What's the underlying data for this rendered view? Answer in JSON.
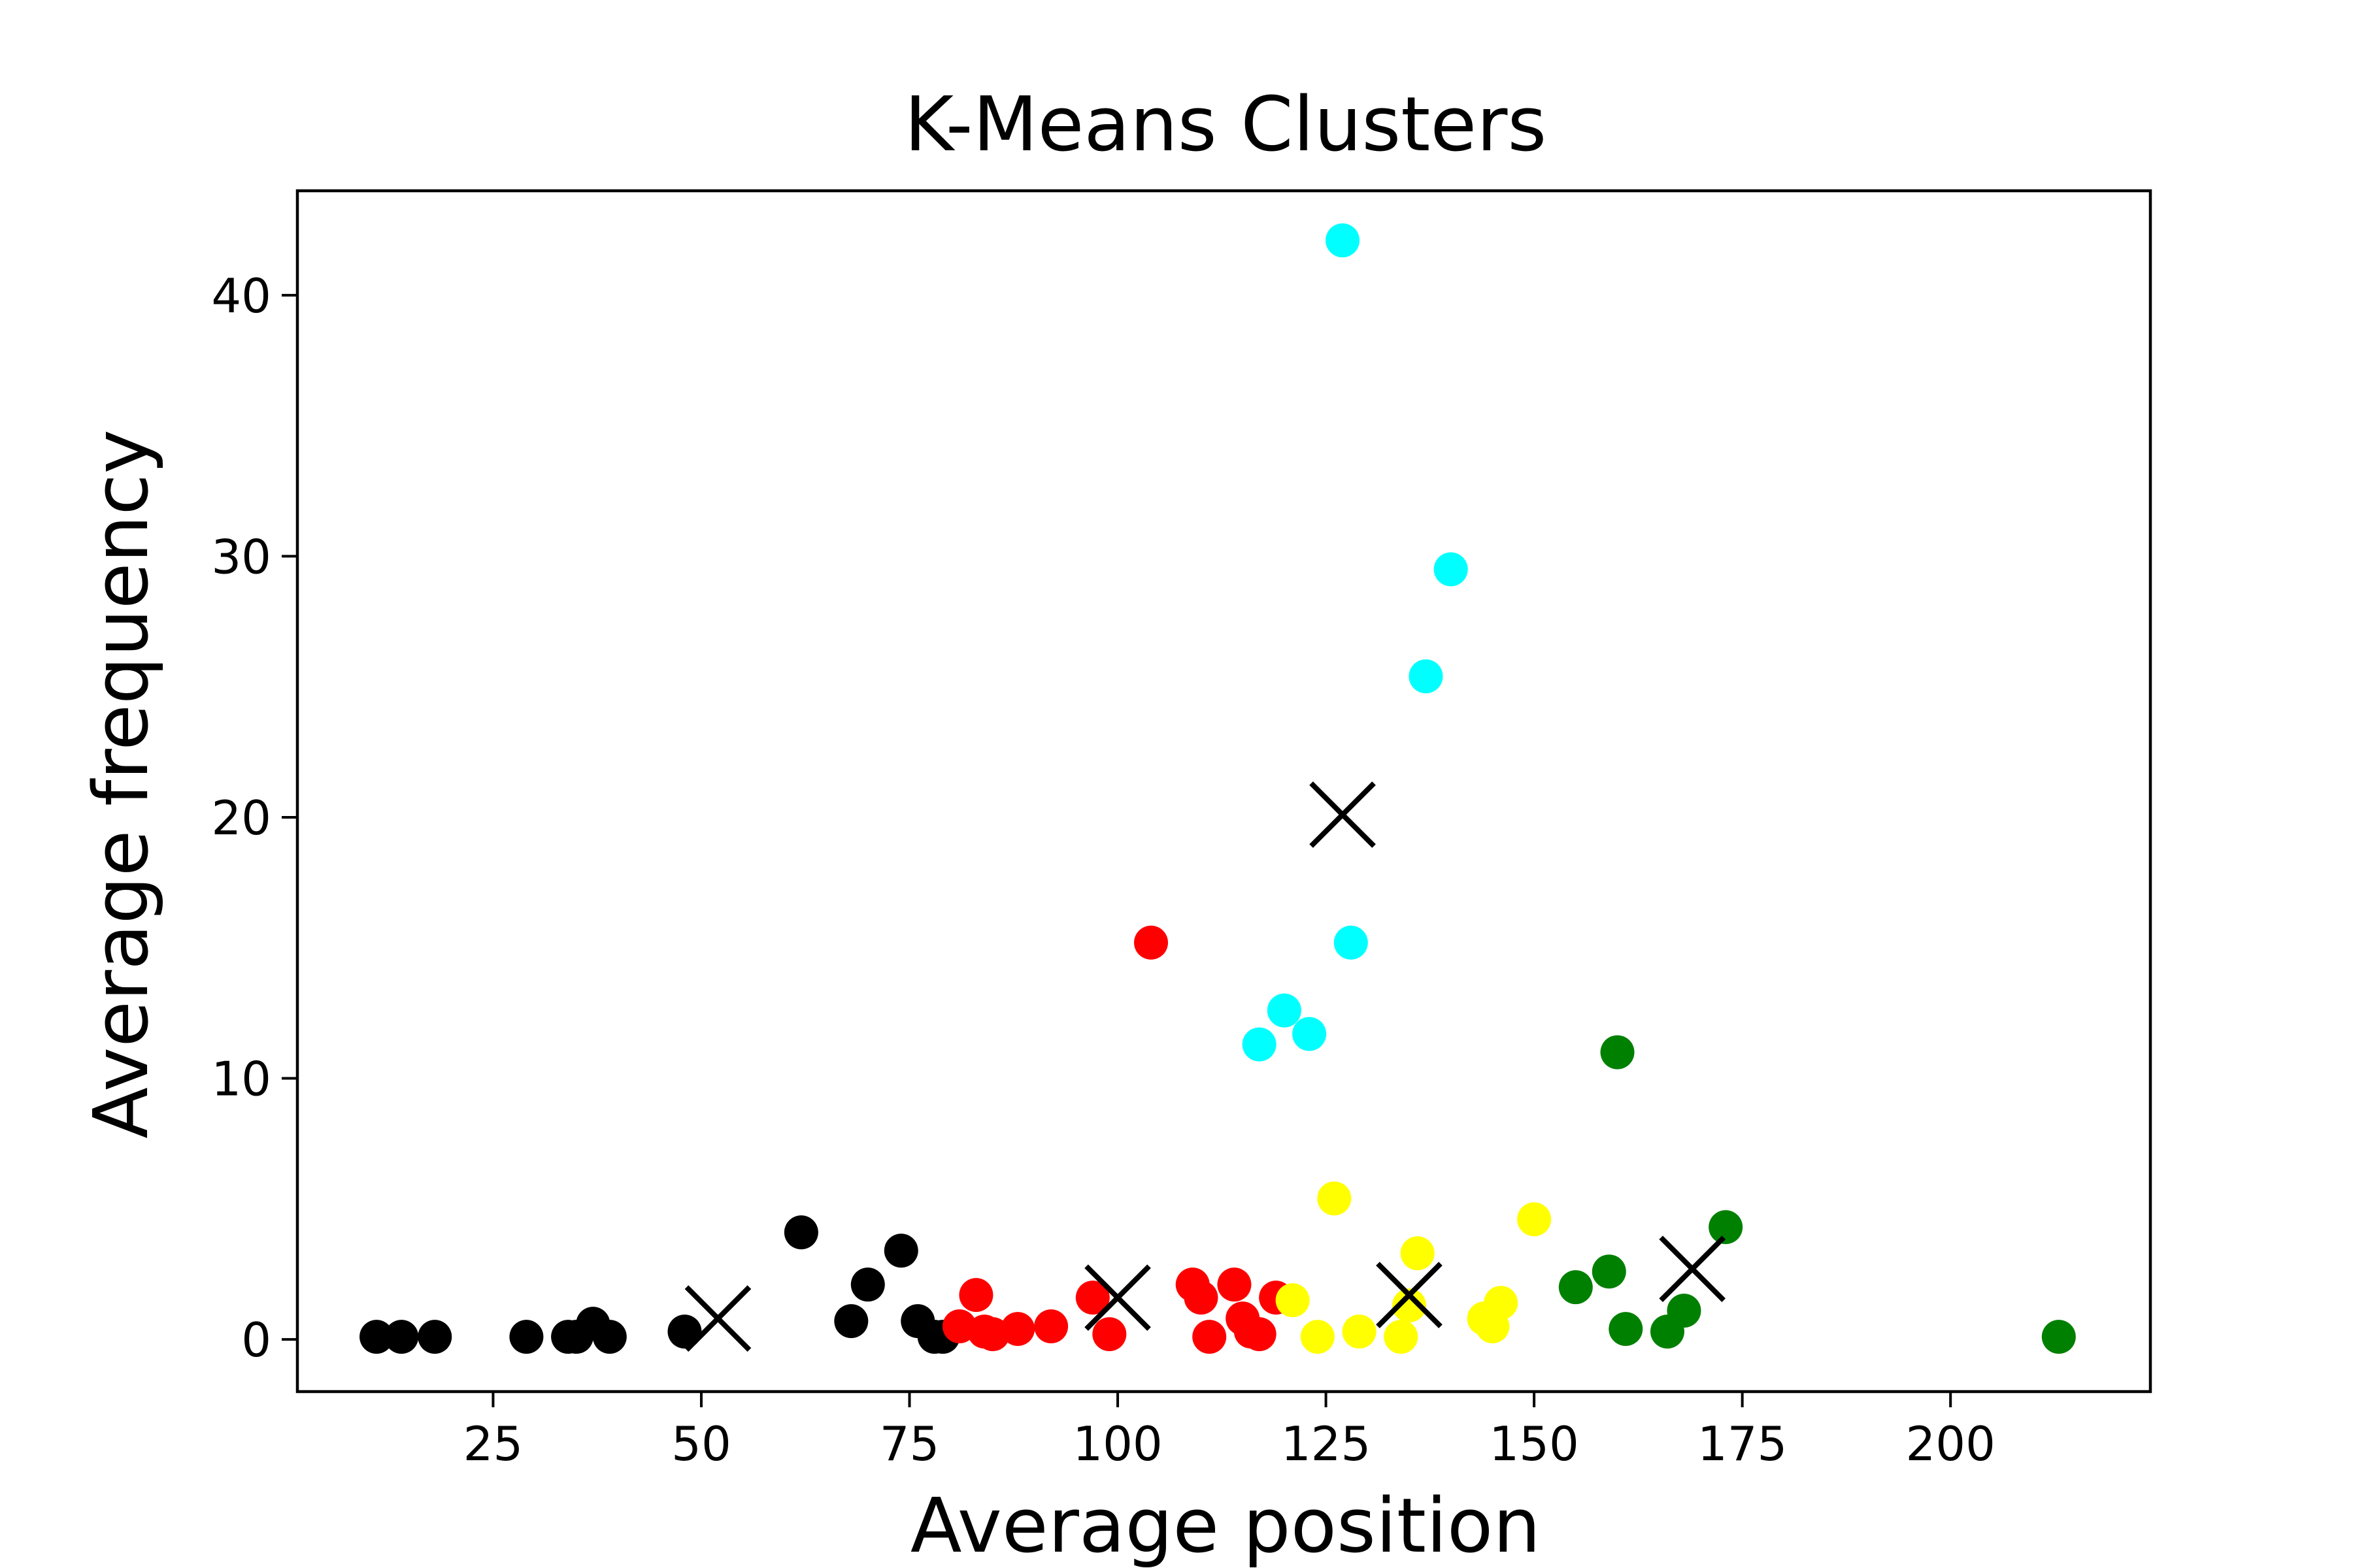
{
  "chart_data": {
    "type": "scatter",
    "title": "K-Means Clusters",
    "xlabel": "Average position",
    "ylabel": "Average frequency",
    "xlim": [
      1.5,
      224
    ],
    "ylim": [
      -2,
      44
    ],
    "xticks": [
      25,
      50,
      75,
      100,
      125,
      150,
      175,
      200
    ],
    "yticks": [
      0,
      10,
      20,
      30,
      40
    ],
    "grid": false,
    "legend": "none",
    "series": [
      {
        "color": "#000000",
        "points": [
          [
            11,
            0.1
          ],
          [
            14,
            0.1
          ],
          [
            18,
            0.1
          ],
          [
            29,
            0.1
          ],
          [
            34,
            0.1
          ],
          [
            35,
            0.1
          ],
          [
            37,
            0.6
          ],
          [
            39,
            0.1
          ],
          [
            48,
            0.3
          ],
          [
            62,
            4.1
          ],
          [
            68,
            0.7
          ],
          [
            70,
            2.1
          ],
          [
            74,
            3.4
          ],
          [
            76,
            0.7
          ],
          [
            78,
            0.1
          ],
          [
            79,
            0.1
          ]
        ]
      },
      {
        "color": "#ff0000",
        "points": [
          [
            81,
            0.5
          ],
          [
            83,
            1.7
          ],
          [
            84,
            0.3
          ],
          [
            85,
            0.2
          ],
          [
            88,
            0.4
          ],
          [
            92,
            0.5
          ],
          [
            97,
            1.6
          ],
          [
            99,
            0.2
          ],
          [
            104,
            15.2
          ],
          [
            109,
            2.1
          ],
          [
            110,
            1.6
          ],
          [
            111,
            0.1
          ],
          [
            114,
            2.1
          ],
          [
            115,
            0.8
          ],
          [
            116,
            0.3
          ],
          [
            117,
            0.2
          ],
          [
            119,
            1.6
          ]
        ]
      },
      {
        "color": "#00ffff",
        "points": [
          [
            117,
            11.3
          ],
          [
            120,
            12.6
          ],
          [
            123,
            11.7
          ],
          [
            127,
            42.1
          ],
          [
            128,
            15.2
          ],
          [
            137,
            25.4
          ],
          [
            140,
            29.5
          ]
        ]
      },
      {
        "color": "#ffff00",
        "points": [
          [
            121,
            1.5
          ],
          [
            124,
            0.1
          ],
          [
            126,
            5.4
          ],
          [
            129,
            0.3
          ],
          [
            134,
            0.1
          ],
          [
            135,
            1.3
          ],
          [
            136,
            3.3
          ],
          [
            144,
            0.8
          ],
          [
            145,
            0.5
          ],
          [
            146,
            1.4
          ],
          [
            150,
            4.6
          ]
        ]
      },
      {
        "color": "#008000",
        "points": [
          [
            155,
            2.0
          ],
          [
            159,
            2.6
          ],
          [
            160,
            11.0
          ],
          [
            161,
            0.4
          ],
          [
            166,
            0.3
          ],
          [
            168,
            1.1
          ],
          [
            173,
            4.3
          ],
          [
            213,
            0.1
          ]
        ]
      }
    ],
    "centroids": {
      "color": "#000000",
      "points": [
        [
          52,
          0.8
        ],
        [
          100,
          1.6
        ],
        [
          127,
          20.1
        ],
        [
          135,
          1.7
        ],
        [
          169,
          2.7
        ]
      ]
    }
  }
}
